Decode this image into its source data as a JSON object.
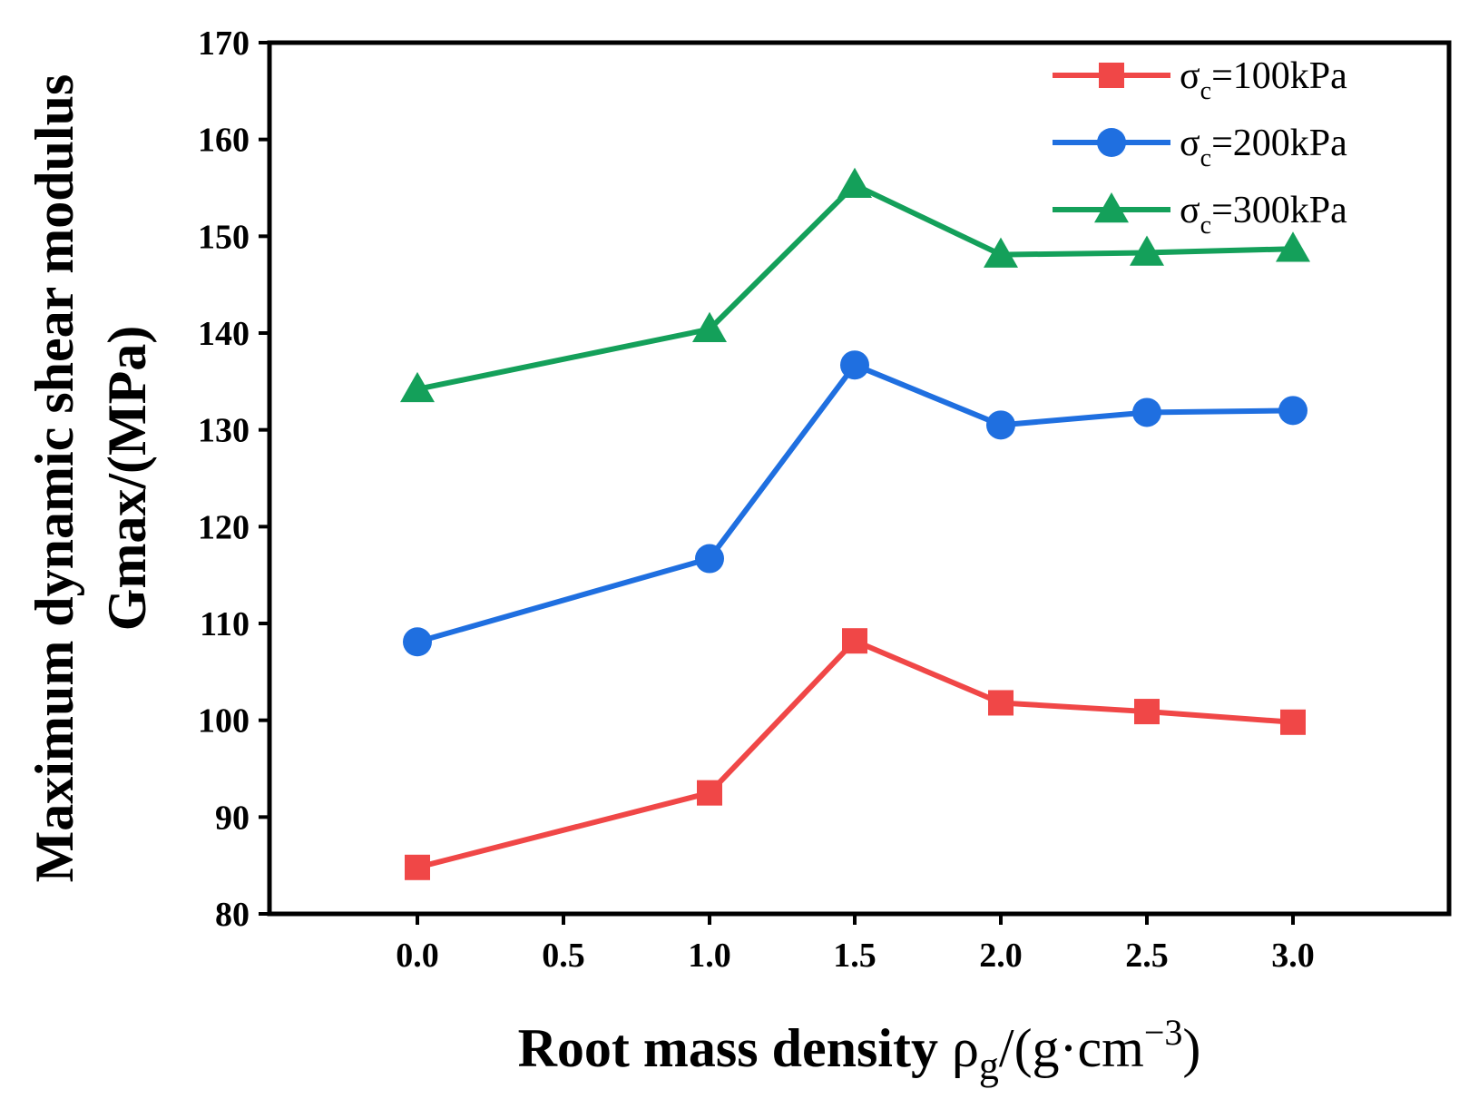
{
  "chart_data": {
    "type": "line",
    "title": "",
    "xlabel": {
      "main": "Root mass density ",
      "symbol": "ρ",
      "symbol_sub": "g",
      "unit_open": "/(g·cm",
      "unit_sup": "−3",
      "unit_close": ")"
    },
    "ylabel": {
      "line1": "Maximum dynamic shear modulus",
      "line2": "Gmax/(MPa)"
    },
    "x": [
      0.0,
      1.0,
      1.5,
      2.0,
      2.5,
      3.0
    ],
    "x_tick_labels": [
      "0.0",
      "0.5",
      "1.0",
      "1.5",
      "2.0",
      "2.5",
      "3.0"
    ],
    "y_ticks": [
      80,
      90,
      100,
      110,
      120,
      130,
      140,
      150,
      160,
      170
    ],
    "ylim": [
      80,
      170
    ],
    "grid": false,
    "legend_position": "top-right",
    "series": [
      {
        "name": "σc=100kPa",
        "legend_sym": "σ",
        "legend_sub": "c",
        "legend_rest": "=100kPa",
        "marker": "square",
        "color": "#f04747",
        "values": [
          84.8,
          92.5,
          108.2,
          101.8,
          100.9,
          99.8
        ]
      },
      {
        "name": "σc=200kPa",
        "legend_sym": "σ",
        "legend_sub": "c",
        "legend_rest": "=200kPa",
        "marker": "circle",
        "color": "#1f6fe0",
        "values": [
          108.1,
          116.7,
          136.7,
          130.5,
          131.8,
          132.0
        ]
      },
      {
        "name": "σc=300kPa",
        "legend_sym": "σ",
        "legend_sub": "c",
        "legend_rest": "=300kPa",
        "marker": "triangle",
        "color": "#14a05a",
        "values": [
          134.2,
          140.4,
          155.3,
          148.1,
          148.3,
          148.7
        ]
      }
    ]
  }
}
